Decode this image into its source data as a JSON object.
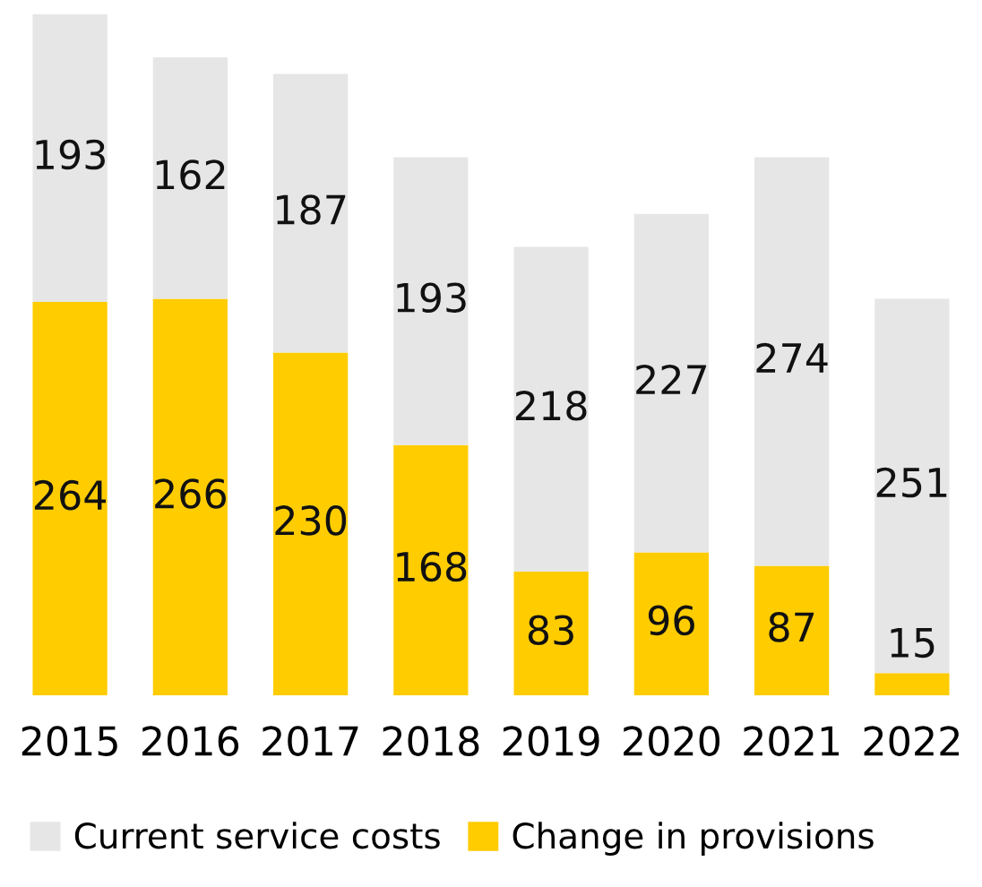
{
  "chart_data": {
    "type": "bar",
    "stacked": true,
    "data_labels": true,
    "legend": "bottom",
    "grid": false,
    "categories": [
      "2015",
      "2016",
      "2017",
      "2018",
      "2019",
      "2020",
      "2021",
      "2022"
    ],
    "series": [
      {
        "name": "Change in provisions",
        "color": "#ffcc00",
        "values": [
          264,
          266,
          230,
          168,
          83,
          96,
          87,
          15
        ]
      },
      {
        "name": "Current service costs",
        "color": "#e6e6e6",
        "values": [
          193,
          162,
          187,
          193,
          218,
          227,
          274,
          251
        ]
      }
    ]
  }
}
